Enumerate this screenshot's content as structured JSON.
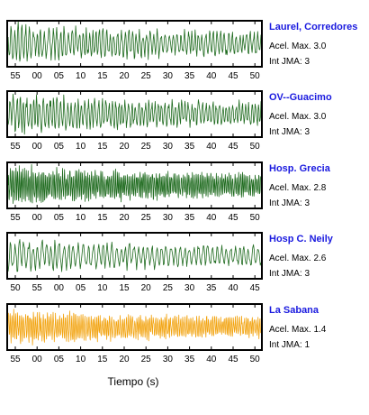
{
  "chart_data": {
    "type": "line",
    "xlabel": "Tiempo (s)",
    "grid": false,
    "panels": [
      {
        "station": "Laurel, Corredores",
        "acel_text": "Acel. Max. 3.0",
        "jma_text": "Int JMA: 3",
        "color": "#1f6b1f",
        "ticks": [
          "55",
          "00",
          "05",
          "10",
          "15",
          "20",
          "25",
          "30",
          "35",
          "40",
          "45",
          "50"
        ],
        "amplitude": 1.0,
        "seed": 3,
        "density": 1.6
      },
      {
        "station": "OV--Guacimo",
        "acel_text": "Acel. Max. 3.0",
        "jma_text": "Int JMA: 3",
        "color": "#1f6b1f",
        "ticks": [
          "55",
          "00",
          "05",
          "10",
          "15",
          "20",
          "25",
          "30",
          "35",
          "40",
          "45",
          "50"
        ],
        "amplitude": 1.0,
        "seed": 7,
        "density": 1.8
      },
      {
        "station": "Hosp. Grecia",
        "acel_text": "Acel. Max. 2.8",
        "jma_text": "Int JMA: 3",
        "color": "#1f6b1f",
        "ticks": [
          "55",
          "00",
          "05",
          "10",
          "15",
          "20",
          "25",
          "30",
          "35",
          "40",
          "45",
          "50"
        ],
        "amplitude": 0.95,
        "seed": 11,
        "density": 3.2
      },
      {
        "station": "Hosp C. Neily",
        "acel_text": "Acel. Max. 2.6",
        "jma_text": "Int JMA: 3",
        "color": "#1f6b1f",
        "ticks": [
          "50",
          "55",
          "00",
          "05",
          "10",
          "15",
          "20",
          "25",
          "30",
          "35",
          "40",
          "45"
        ],
        "amplitude": 0.9,
        "seed": 19,
        "density": 1.3
      },
      {
        "station": "La Sabana",
        "acel_text": "Acel. Max. 1.4",
        "jma_text": "Int JMA: 1",
        "color": "#f2a30f",
        "ticks": [
          "55",
          "00",
          "05",
          "10",
          "15",
          "20",
          "25",
          "30",
          "35",
          "40",
          "45",
          "50"
        ],
        "amplitude": 0.85,
        "seed": 23,
        "density": 3.0
      }
    ]
  }
}
